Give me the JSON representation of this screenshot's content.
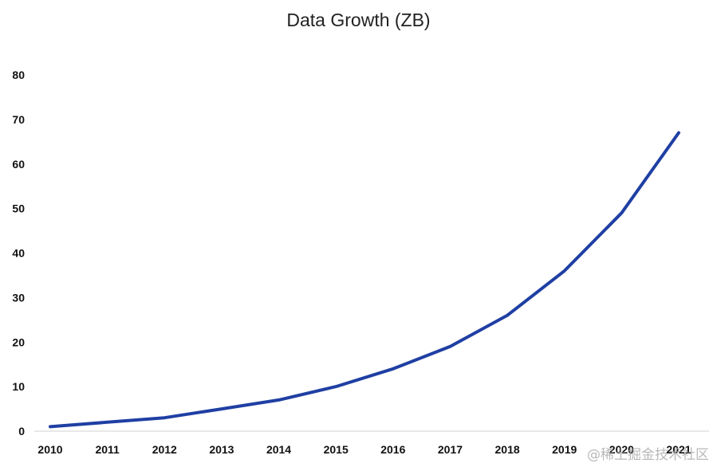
{
  "chart_data": {
    "type": "line",
    "title": "Data Growth (ZB)",
    "xlabel": "",
    "ylabel": "",
    "categories": [
      "2010",
      "2011",
      "2012",
      "2013",
      "2014",
      "2015",
      "2016",
      "2017",
      "2018",
      "2019",
      "2020",
      "2021"
    ],
    "series": [
      {
        "name": "Data Growth (ZB)",
        "values": [
          1,
          2,
          3,
          5,
          7,
          10,
          14,
          19,
          26,
          36,
          49,
          67
        ]
      }
    ],
    "ylim": [
      0,
      80
    ],
    "yticks": [
      "0",
      "10",
      "20",
      "30",
      "40",
      "50",
      "60",
      "70",
      "80"
    ],
    "grid": false,
    "line_color": "#1f3fa3"
  },
  "watermark": "@稀土掘金技术社区"
}
